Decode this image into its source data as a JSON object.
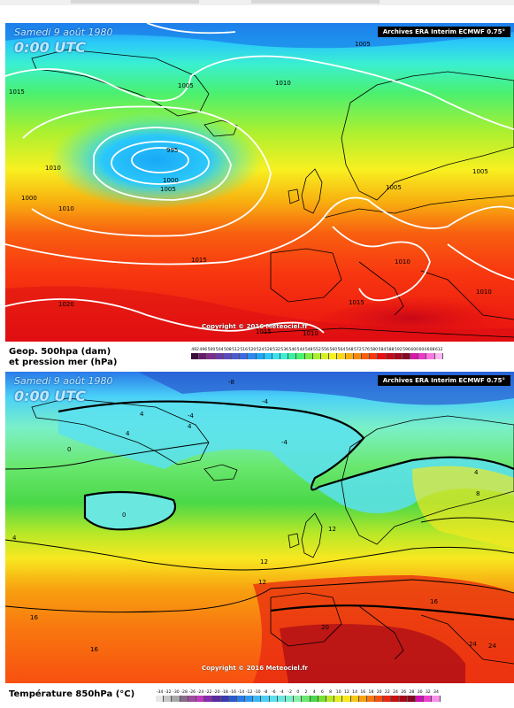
{
  "map_top": {
    "date": "Samedi 9 août 1980",
    "time": "0:00 UTC",
    "source": "Archives ERA Interim ECMWF 0.75°",
    "copyright": "Copyright © 2016 Meteociel.fr",
    "legend_title_line1": "Geop. 500hpa (dam)",
    "legend_title_line2": "et pression mer (hPa)",
    "scale": [
      "492",
      "496",
      "500",
      "504",
      "508",
      "512",
      "516",
      "520",
      "524",
      "528",
      "532",
      "536",
      "540",
      "544",
      "548",
      "552",
      "556",
      "560",
      "564",
      "568",
      "572",
      "576",
      "580",
      "584",
      "588",
      "592",
      "596",
      "600",
      "604",
      "608",
      "612"
    ],
    "scale_colors": [
      "#3a0a3a",
      "#6a1a6a",
      "#7e2a8e",
      "#6a3aaa",
      "#5a4ac0",
      "#4a5ad0",
      "#3a6ae0",
      "#2a8af0",
      "#1aa8f8",
      "#2ac8fa",
      "#3ae0f0",
      "#3af0d0",
      "#3af0a0",
      "#4af070",
      "#7af040",
      "#aaf030",
      "#d8f028",
      "#f8f020",
      "#f8d818",
      "#f8b010",
      "#f88810",
      "#f86010",
      "#f83810",
      "#e81010",
      "#c80818",
      "#a80820",
      "#880828",
      "#d818a8",
      "#f038c8",
      "#f878e0",
      "#fcb8f0"
    ],
    "isobars": [
      {
        "label": "995"
      },
      {
        "label": "1000"
      },
      {
        "label": "1005"
      },
      {
        "label": "1005"
      },
      {
        "label": "1005"
      },
      {
        "label": "1005"
      },
      {
        "label": "1005"
      },
      {
        "label": "1010"
      },
      {
        "label": "1010"
      },
      {
        "label": "1010"
      },
      {
        "label": "1010"
      },
      {
        "label": "1010"
      },
      {
        "label": "1015"
      },
      {
        "label": "1015"
      },
      {
        "label": "1015"
      },
      {
        "label": "1015"
      },
      {
        "label": "1020"
      },
      {
        "label": "1000"
      },
      {
        "label": "1010"
      }
    ]
  },
  "map_bottom": {
    "date": "Samedi 9 août 1980",
    "time": "0:00 UTC",
    "source": "Archives ERA Interim ECMWF 0.75°",
    "copyright": "Copyright © 2016 Meteociel.fr",
    "legend_title": "Température 850hPa (°C)",
    "scale": [
      "-34",
      "-32",
      "-30",
      "-28",
      "-26",
      "-24",
      "-22",
      "-20",
      "-18",
      "-16",
      "-14",
      "-12",
      "-10",
      "-8",
      "-6",
      "-4",
      "-2",
      "0",
      "2",
      "4",
      "6",
      "8",
      "10",
      "12",
      "14",
      "16",
      "18",
      "20",
      "22",
      "24",
      "26",
      "28",
      "30",
      "32",
      "34"
    ],
    "scale_colors": [
      "#e8e8e8",
      "#c8c8c8",
      "#a8a8a8",
      "#8a6a8a",
      "#a04aa0",
      "#c03ac0",
      "#8a2ab0",
      "#5a2aa0",
      "#3a3ab0",
      "#2a5ad0",
      "#2a7ae8",
      "#2a9af8",
      "#3ab8fa",
      "#4ad0f8",
      "#5ae0f0",
      "#6ae8e0",
      "#7af0c8",
      "#8af0a8",
      "#6ae870",
      "#4ad848",
      "#7ae030",
      "#b8e828",
      "#e0f020",
      "#f8e820",
      "#f8c818",
      "#f8a010",
      "#f87810",
      "#f85010",
      "#e82810",
      "#c81010",
      "#a80818",
      "#880820",
      "#d010b0",
      "#f040d0",
      "#f890e8"
    ],
    "isotherms": [
      {
        "label": "-8"
      },
      {
        "label": "-4"
      },
      {
        "label": "-4"
      },
      {
        "label": "-4"
      },
      {
        "label": "0"
      },
      {
        "label": "0"
      },
      {
        "label": "4"
      },
      {
        "label": "4"
      },
      {
        "label": "4"
      },
      {
        "label": "4"
      },
      {
        "label": "4"
      },
      {
        "label": "8"
      },
      {
        "label": "12"
      },
      {
        "label": "12"
      },
      {
        "label": "16"
      },
      {
        "label": "16"
      },
      {
        "label": "20"
      },
      {
        "label": "24"
      },
      {
        "label": "24"
      },
      {
        "label": "16"
      },
      {
        "label": "12"
      }
    ]
  }
}
